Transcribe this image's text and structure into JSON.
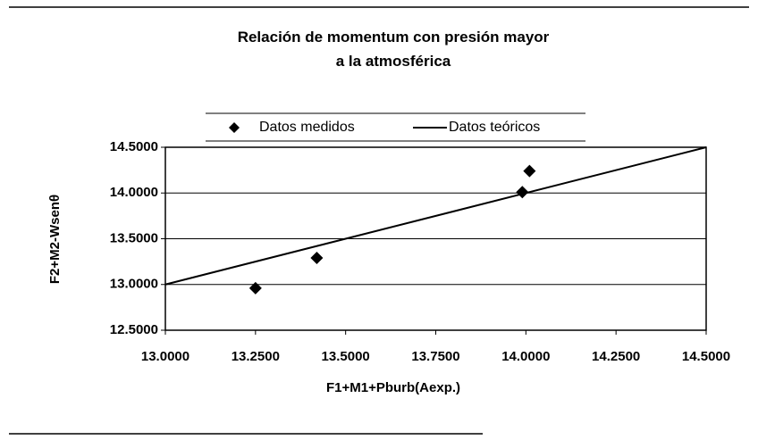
{
  "chart_data": {
    "type": "scatter",
    "title": "Relación de momentum con presión mayor a la atmosférica",
    "xlabel": "F1+M1+Pburb(Aexp.)",
    "ylabel": "F2+M2-Wsenθ",
    "series": [
      {
        "name": "Datos medidos",
        "color": "#000000",
        "style": "markers",
        "x": [
          13.25,
          13.42,
          13.99,
          14.01
        ],
        "values": [
          12.96,
          13.29,
          14.01,
          14.24
        ]
      },
      {
        "name": "Datos teóricos",
        "color": "#000000",
        "style": "line",
        "x": [
          13.0,
          14.5
        ],
        "values": [
          13.0,
          14.5
        ]
      }
    ],
    "xlim": [
      13.0,
      14.5
    ],
    "xticks": [
      {
        "value": 13.0,
        "label": "13.0000"
      },
      {
        "value": 13.25,
        "label": "13.2500"
      },
      {
        "value": 13.5,
        "label": "13.5000"
      },
      {
        "value": 13.75,
        "label": "13.7500"
      },
      {
        "value": 14.0,
        "label": "14.0000"
      },
      {
        "value": 14.25,
        "label": "14.2500"
      },
      {
        "value": 14.5,
        "label": "14.5000"
      }
    ],
    "ylim": [
      12.5,
      14.5
    ],
    "yticks": [
      {
        "value": 12.5,
        "label": "12.5000"
      },
      {
        "value": 13.0,
        "label": "13.0000"
      },
      {
        "value": 13.5,
        "label": "13.5000"
      },
      {
        "value": 14.0,
        "label": "14.0000"
      },
      {
        "value": 14.5,
        "label": "14.5000"
      }
    ],
    "grid": true
  }
}
